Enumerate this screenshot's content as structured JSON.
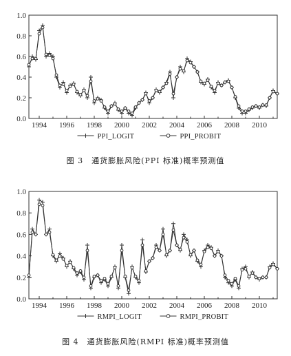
{
  "chart_data": [
    {
      "type": "line",
      "title": "",
      "xlabel": "",
      "ylabel": "",
      "xlim": [
        1993.25,
        2011.3
      ],
      "ylim": [
        0.0,
        1.0
      ],
      "x_ticks": [
        "1994",
        "1996",
        "1998",
        "2000",
        "2002",
        "2004",
        "2006",
        "2008",
        "2010"
      ],
      "y_ticks": [
        "0.0",
        "0.2",
        "0.4",
        "0.6",
        "0.8",
        "1.0"
      ],
      "grid": false,
      "legend_position": "bottom",
      "caption": "图 3　通货膨胀风险(PPI 标准)概率预测值",
      "series": [
        {
          "name": "PPI_LOGIT",
          "marker": "plus",
          "color": "#333333",
          "x": [
            1993.25,
            1993.5,
            1993.75,
            1994.0,
            1994.25,
            1994.5,
            1994.75,
            1995.0,
            1995.25,
            1995.5,
            1995.75,
            1996.0,
            1996.25,
            1996.5,
            1996.75,
            1997.0,
            1997.25,
            1997.5,
            1997.75,
            1998.0,
            1998.25,
            1998.5,
            1998.75,
            1999.0,
            1999.25,
            1999.5,
            1999.75,
            2000.0,
            2000.25,
            2000.5,
            2000.75,
            2001.0,
            2001.25,
            2001.5,
            2001.75,
            2002.0,
            2002.25,
            2002.5,
            2002.75,
            2003.0,
            2003.25,
            2003.5,
            2003.75,
            2004.0,
            2004.25,
            2004.5,
            2004.75,
            2005.0,
            2005.25,
            2005.5,
            2005.75,
            2006.0,
            2006.25,
            2006.5,
            2006.75,
            2007.0,
            2007.25,
            2007.5,
            2007.75,
            2008.0,
            2008.25,
            2008.5,
            2008.75,
            2009.0,
            2009.25,
            2009.5,
            2009.75,
            2010.0,
            2010.25,
            2010.5,
            2010.75,
            2011.0,
            2011.3
          ],
          "y": [
            0.5,
            0.6,
            0.57,
            0.85,
            0.9,
            0.6,
            0.63,
            0.6,
            0.4,
            0.3,
            0.35,
            0.25,
            0.32,
            0.34,
            0.25,
            0.22,
            0.28,
            0.2,
            0.4,
            0.15,
            0.2,
            0.18,
            0.1,
            0.05,
            0.12,
            0.15,
            0.08,
            0.05,
            0.1,
            0.05,
            0.03,
            0.1,
            0.15,
            0.18,
            0.25,
            0.15,
            0.2,
            0.28,
            0.25,
            0.3,
            0.35,
            0.45,
            0.2,
            0.4,
            0.5,
            0.45,
            0.58,
            0.55,
            0.5,
            0.45,
            0.35,
            0.33,
            0.38,
            0.3,
            0.25,
            0.35,
            0.32,
            0.35,
            0.37,
            0.3,
            0.2,
            0.1,
            0.05,
            0.05,
            0.08,
            0.1,
            0.12,
            0.1,
            0.13,
            0.12,
            0.2,
            0.27,
            0.24
          ]
        },
        {
          "name": "PPI_PROBIT",
          "marker": "circle",
          "color": "#333333",
          "x": [
            1993.25,
            1993.5,
            1993.75,
            1994.0,
            1994.25,
            1994.5,
            1994.75,
            1995.0,
            1995.25,
            1995.5,
            1995.75,
            1996.0,
            1996.25,
            1996.5,
            1996.75,
            1997.0,
            1997.25,
            1997.5,
            1997.75,
            1998.0,
            1998.25,
            1998.5,
            1998.75,
            1999.0,
            1999.25,
            1999.5,
            1999.75,
            2000.0,
            2000.25,
            2000.5,
            2000.75,
            2001.0,
            2001.25,
            2001.5,
            2001.75,
            2002.0,
            2002.25,
            2002.5,
            2002.75,
            2003.0,
            2003.25,
            2003.5,
            2003.75,
            2004.0,
            2004.25,
            2004.5,
            2004.75,
            2005.0,
            2005.25,
            2005.5,
            2005.75,
            2006.0,
            2006.25,
            2006.5,
            2006.75,
            2007.0,
            2007.25,
            2007.5,
            2007.75,
            2008.0,
            2008.25,
            2008.5,
            2008.75,
            2009.0,
            2009.25,
            2009.5,
            2009.75,
            2010.0,
            2010.25,
            2010.5,
            2010.75,
            2011.0,
            2011.3
          ],
          "y": [
            0.52,
            0.58,
            0.58,
            0.82,
            0.88,
            0.62,
            0.61,
            0.58,
            0.42,
            0.32,
            0.33,
            0.27,
            0.31,
            0.33,
            0.26,
            0.23,
            0.27,
            0.22,
            0.36,
            0.17,
            0.19,
            0.17,
            0.11,
            0.07,
            0.12,
            0.14,
            0.09,
            0.07,
            0.1,
            0.07,
            0.05,
            0.11,
            0.15,
            0.18,
            0.24,
            0.17,
            0.2,
            0.27,
            0.26,
            0.3,
            0.34,
            0.43,
            0.24,
            0.4,
            0.48,
            0.46,
            0.56,
            0.54,
            0.5,
            0.45,
            0.36,
            0.34,
            0.37,
            0.31,
            0.27,
            0.34,
            0.32,
            0.35,
            0.36,
            0.3,
            0.21,
            0.12,
            0.07,
            0.07,
            0.09,
            0.11,
            0.12,
            0.11,
            0.13,
            0.13,
            0.2,
            0.26,
            0.24
          ]
        }
      ]
    },
    {
      "type": "line",
      "title": "",
      "xlabel": "",
      "ylabel": "",
      "xlim": [
        1993.25,
        2011.3
      ],
      "ylim": [
        0.0,
        1.0
      ],
      "x_ticks": [
        "1994",
        "1996",
        "1998",
        "2000",
        "2002",
        "2004",
        "2006",
        "2008",
        "2010"
      ],
      "y_ticks": [
        "0.0",
        "0.2",
        "0.4",
        "0.6",
        "0.8",
        "1.0"
      ],
      "grid": false,
      "legend_position": "bottom",
      "caption": "图 4　通货膨胀风险(RMPI 标准)概率预测值",
      "series": [
        {
          "name": "RMPI_LOGIT",
          "marker": "plus",
          "color": "#333333",
          "x": [
            1993.25,
            1993.5,
            1993.75,
            1994.0,
            1994.25,
            1994.5,
            1994.75,
            1995.0,
            1995.25,
            1995.5,
            1995.75,
            1996.0,
            1996.25,
            1996.5,
            1996.75,
            1997.0,
            1997.25,
            1997.5,
            1997.75,
            1998.0,
            1998.25,
            1998.5,
            1998.75,
            1999.0,
            1999.25,
            1999.5,
            1999.75,
            2000.0,
            2000.25,
            2000.5,
            2000.75,
            2001.0,
            2001.25,
            2001.5,
            2001.75,
            2002.0,
            2002.25,
            2002.5,
            2002.75,
            2003.0,
            2003.25,
            2003.5,
            2003.75,
            2004.0,
            2004.25,
            2004.5,
            2004.75,
            2005.0,
            2005.25,
            2005.5,
            2005.75,
            2006.0,
            2006.25,
            2006.5,
            2006.75,
            2007.0,
            2007.25,
            2007.5,
            2007.75,
            2008.0,
            2008.25,
            2008.5,
            2008.75,
            2009.0,
            2009.25,
            2009.5,
            2009.75,
            2010.0,
            2010.25,
            2010.5,
            2010.75,
            2011.0,
            2011.3
          ],
          "y": [
            0.2,
            0.65,
            0.6,
            0.92,
            0.9,
            0.6,
            0.65,
            0.4,
            0.35,
            0.42,
            0.38,
            0.3,
            0.35,
            0.28,
            0.22,
            0.25,
            0.18,
            0.5,
            0.1,
            0.2,
            0.22,
            0.15,
            0.18,
            0.12,
            0.2,
            0.3,
            0.1,
            0.5,
            0.2,
            0.05,
            0.3,
            0.2,
            0.15,
            0.55,
            0.25,
            0.35,
            0.38,
            0.5,
            0.45,
            0.65,
            0.4,
            0.45,
            0.7,
            0.5,
            0.45,
            0.6,
            0.55,
            0.4,
            0.45,
            0.35,
            0.3,
            0.45,
            0.5,
            0.48,
            0.4,
            0.45,
            0.4,
            0.2,
            0.15,
            0.12,
            0.18,
            0.1,
            0.28,
            0.3,
            0.2,
            0.25,
            0.2,
            0.18,
            0.2,
            0.2,
            0.3,
            0.33,
            0.28
          ]
        },
        {
          "name": "RMPI_PROBIT",
          "marker": "circle",
          "color": "#333333",
          "x": [
            1993.25,
            1993.5,
            1993.75,
            1994.0,
            1994.25,
            1994.5,
            1994.75,
            1995.0,
            1995.25,
            1995.5,
            1995.75,
            1996.0,
            1996.25,
            1996.5,
            1996.75,
            1997.0,
            1997.25,
            1997.5,
            1997.75,
            1998.0,
            1998.25,
            1998.5,
            1998.75,
            1999.0,
            1999.25,
            1999.5,
            1999.75,
            2000.0,
            2000.25,
            2000.5,
            2000.75,
            2001.0,
            2001.25,
            2001.5,
            2001.75,
            2002.0,
            2002.25,
            2002.5,
            2002.75,
            2003.0,
            2003.25,
            2003.5,
            2003.75,
            2004.0,
            2004.25,
            2004.5,
            2004.75,
            2005.0,
            2005.25,
            2005.5,
            2005.75,
            2006.0,
            2006.25,
            2006.5,
            2006.75,
            2007.0,
            2007.25,
            2007.5,
            2007.75,
            2008.0,
            2008.25,
            2008.5,
            2008.75,
            2009.0,
            2009.25,
            2009.5,
            2009.75,
            2010.0,
            2010.25,
            2010.5,
            2010.75,
            2011.0,
            2011.3
          ],
          "y": [
            0.22,
            0.62,
            0.6,
            0.88,
            0.87,
            0.6,
            0.62,
            0.41,
            0.36,
            0.4,
            0.37,
            0.31,
            0.34,
            0.29,
            0.24,
            0.26,
            0.2,
            0.45,
            0.12,
            0.21,
            0.22,
            0.17,
            0.19,
            0.14,
            0.21,
            0.29,
            0.12,
            0.45,
            0.21,
            0.08,
            0.29,
            0.21,
            0.17,
            0.5,
            0.26,
            0.35,
            0.38,
            0.48,
            0.45,
            0.6,
            0.41,
            0.45,
            0.64,
            0.5,
            0.46,
            0.57,
            0.53,
            0.41,
            0.45,
            0.36,
            0.32,
            0.44,
            0.48,
            0.47,
            0.4,
            0.44,
            0.4,
            0.22,
            0.17,
            0.14,
            0.19,
            0.12,
            0.27,
            0.28,
            0.21,
            0.24,
            0.2,
            0.19,
            0.2,
            0.2,
            0.29,
            0.32,
            0.28
          ]
        }
      ]
    }
  ]
}
